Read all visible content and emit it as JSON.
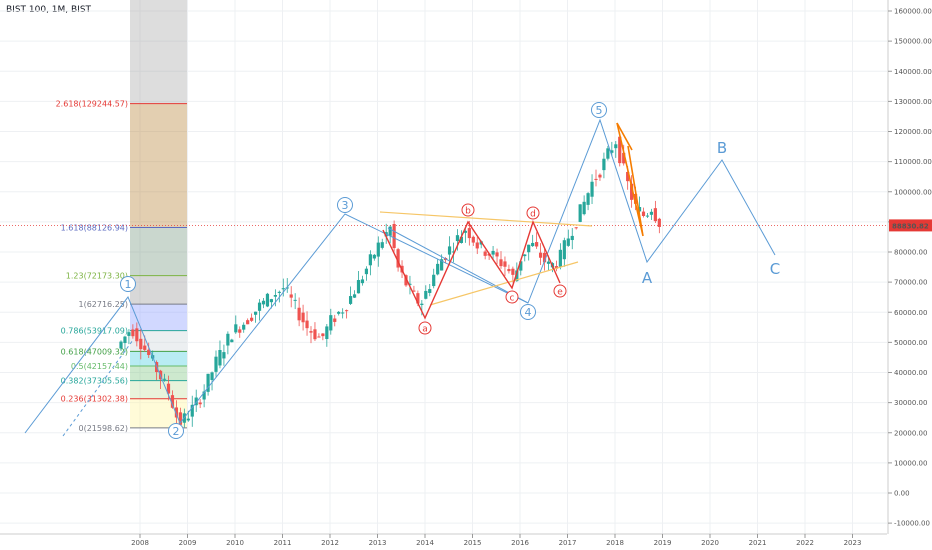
{
  "header": {
    "symbol_title": "BIST 100, 1M, BIST"
  },
  "colors": {
    "up": "#26a69a",
    "down": "#ef5350",
    "wave": "#5b9bd5",
    "red_wave": "#e53935",
    "orange_wave": "#f57c00",
    "yellow_line": "#f6c667",
    "grid": "#eef0f3",
    "price_line": "#e53935"
  },
  "chart_data": {
    "type": "candlestick",
    "title": "BIST 100, 1M, BIST",
    "x_ticks": [
      "2008",
      "2009",
      "2010",
      "2011",
      "2012",
      "2013",
      "2014",
      "2015",
      "2016",
      "2017",
      "2018",
      "2019",
      "2020",
      "2021",
      "2022",
      "2023"
    ],
    "y_ticks": [
      "160000.00",
      "150000.00",
      "140000.00",
      "130000.00",
      "120000.00",
      "110000.00",
      "100000.00",
      "90000.00",
      "80000.00",
      "70000.00",
      "60000.00",
      "50000.00",
      "40000.00",
      "30000.00",
      "20000.00",
      "10000.00",
      "0.00",
      "-10000.00"
    ],
    "ylim": [
      -12000,
      163000
    ],
    "last_price": {
      "value": 88830.82,
      "label": "88830.82"
    },
    "fib_levels": [
      {
        "ratio": 2.618,
        "value": 129244.57,
        "label": "2.618(129244.57)",
        "color": "#e53935"
      },
      {
        "ratio": 1.618,
        "value": 88126.94,
        "label": "1.618(88126.94)",
        "color": "#5c6bc0"
      },
      {
        "ratio": 1.23,
        "value": 72173.3,
        "label": "1.23(72173.30)",
        "color": "#7cb342"
      },
      {
        "ratio": 1,
        "value": 62716.25,
        "label": "1(62716.25)",
        "color": "#787b86"
      },
      {
        "ratio": 0.786,
        "value": 53917.09,
        "label": "0.786(53917.09)",
        "color": "#26a69a"
      },
      {
        "ratio": 0.618,
        "value": 47009.32,
        "label": "0.618(47009.32)",
        "color": "#43a047"
      },
      {
        "ratio": 0.5,
        "value": 42157.44,
        "label": "0.5(42157.44)",
        "color": "#66bb6a"
      },
      {
        "ratio": 0.382,
        "value": 37305.56,
        "label": "0.382(37305.56)",
        "color": "#26a69a"
      },
      {
        "ratio": 0.236,
        "value": 31302.38,
        "label": "0.236(31302.38)",
        "color": "#e53935"
      },
      {
        "ratio": 0,
        "value": 21598.62,
        "label": "0(21598.62)",
        "color": "#787b86"
      }
    ],
    "price_path": [
      [
        2007.6,
        48000
      ],
      [
        2007.9,
        55000
      ],
      [
        2008.1,
        50000
      ],
      [
        2008.4,
        42000
      ],
      [
        2008.7,
        33000
      ],
      [
        2008.9,
        23000
      ],
      [
        2009.1,
        26000
      ],
      [
        2009.4,
        33000
      ],
      [
        2009.7,
        44000
      ],
      [
        2010.0,
        53000
      ],
      [
        2010.3,
        57000
      ],
      [
        2010.6,
        62000
      ],
      [
        2010.9,
        66000
      ],
      [
        2011.1,
        68000
      ],
      [
        2011.3,
        63000
      ],
      [
        2011.6,
        55000
      ],
      [
        2011.9,
        51000
      ],
      [
        2012.1,
        57000
      ],
      [
        2012.4,
        62000
      ],
      [
        2012.7,
        70000
      ],
      [
        2012.9,
        76000
      ],
      [
        2013.1,
        82000
      ],
      [
        2013.35,
        88000
      ],
      [
        2013.5,
        75000
      ],
      [
        2013.7,
        69000
      ],
      [
        2013.9,
        64000
      ],
      [
        2014.0,
        63000
      ],
      [
        2014.2,
        70000
      ],
      [
        2014.4,
        77000
      ],
      [
        2014.7,
        83000
      ],
      [
        2014.95,
        88000
      ],
      [
        2015.2,
        82000
      ],
      [
        2015.5,
        79000
      ],
      [
        2015.8,
        75000
      ],
      [
        2015.95,
        71000
      ],
      [
        2016.1,
        78000
      ],
      [
        2016.3,
        83000
      ],
      [
        2016.5,
        79000
      ],
      [
        2016.7,
        75000
      ],
      [
        2016.9,
        77000
      ],
      [
        2017.1,
        85000
      ],
      [
        2017.4,
        95000
      ],
      [
        2017.6,
        103000
      ],
      [
        2017.8,
        108000
      ],
      [
        2017.95,
        113000
      ],
      [
        2018.1,
        117000
      ],
      [
        2018.3,
        105000
      ],
      [
        2018.5,
        95000
      ],
      [
        2018.7,
        92000
      ],
      [
        2018.85,
        95000
      ],
      [
        2019.0,
        90000
      ]
    ],
    "wave_labels": [
      "1",
      "2",
      "3",
      "4",
      "5",
      "A",
      "B",
      "C"
    ],
    "sub_wave_labels": [
      "a",
      "b",
      "c",
      "d",
      "e"
    ]
  }
}
